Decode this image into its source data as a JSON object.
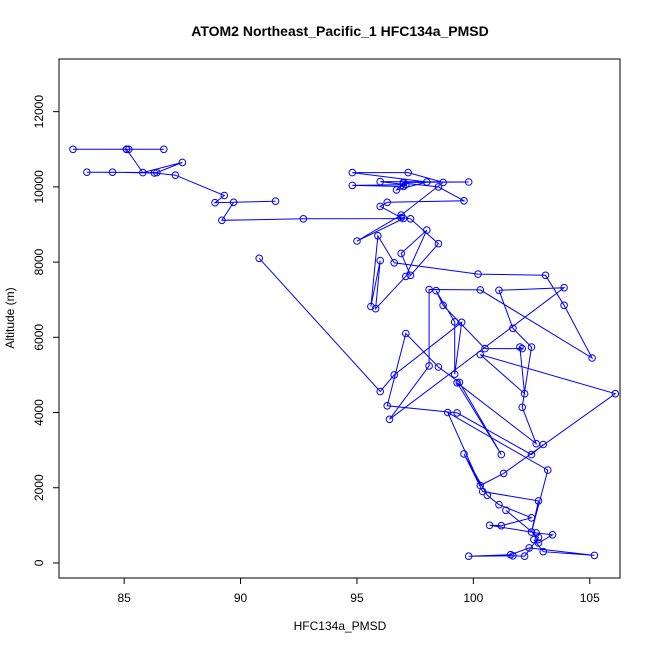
{
  "chart_data": {
    "type": "line",
    "title": "ATOM2 Northeast_Pacific_1 HFC134a_PMSD",
    "xlabel": "HFC134a_PMSD",
    "ylabel": "Altitude (m)",
    "xlim": [
      82.2,
      106.3
    ],
    "ylim": [
      -400,
      13400
    ],
    "xticks": [
      85,
      90,
      95,
      100,
      105
    ],
    "yticks": [
      0,
      2000,
      4000,
      6000,
      8000,
      10000,
      12000
    ],
    "grid": false,
    "markers": "open-circle",
    "series_color": "#0000ff",
    "series": [
      {
        "points": [
          [
            82.8,
            11000
          ],
          [
            85.1,
            11000
          ],
          [
            85.2,
            11000
          ],
          [
            86.7,
            11000
          ],
          [
            85.1,
            11000
          ],
          [
            85.8,
            10380
          ],
          [
            87.5,
            10650
          ],
          [
            86.4,
            10380
          ],
          [
            83.4,
            10390
          ],
          [
            84.5,
            10390
          ],
          [
            86.3,
            10370
          ],
          [
            87.2,
            10310
          ],
          [
            89.3,
            9770
          ],
          [
            88.9,
            9580
          ],
          [
            91.5,
            9620
          ],
          [
            89.7,
            9590
          ],
          [
            89.2,
            9110
          ],
          [
            92.7,
            9150
          ],
          [
            97.0,
            9160
          ],
          [
            95.0,
            8560
          ],
          [
            96.9,
            9250
          ],
          [
            98.7,
            10120
          ],
          [
            97.2,
            10380
          ],
          [
            94.8,
            10380
          ],
          [
            98.0,
            10130
          ],
          [
            96.7,
            9920
          ],
          [
            97.0,
            10120
          ],
          [
            99.8,
            10130
          ],
          [
            96.0,
            10140
          ],
          [
            97.1,
            10060
          ],
          [
            94.8,
            10040
          ],
          [
            97.0,
            10010
          ],
          [
            97.0,
            10100
          ],
          [
            98.5,
            10000
          ],
          [
            99.6,
            9630
          ],
          [
            96.3,
            9590
          ],
          [
            96.0,
            9480
          ],
          [
            96.9,
            9180
          ],
          [
            97.3,
            9150
          ],
          [
            98.5,
            8490
          ],
          [
            97.3,
            7650
          ],
          [
            96.9,
            8230
          ],
          [
            98.0,
            8850
          ],
          [
            97.1,
            7620
          ],
          [
            95.8,
            6760
          ],
          [
            96.0,
            8040
          ],
          [
            95.6,
            6820
          ],
          [
            95.9,
            8700
          ],
          [
            96.6,
            7980
          ],
          [
            100.2,
            7680
          ],
          [
            103.1,
            7650
          ],
          [
            103.9,
            6850
          ],
          [
            105.1,
            5450
          ],
          [
            100.3,
            7260
          ],
          [
            98.1,
            7270
          ],
          [
            98.1,
            5240
          ],
          [
            96.4,
            3820
          ],
          [
            103.9,
            7320
          ],
          [
            101.1,
            7250
          ],
          [
            101.7,
            6240
          ],
          [
            102.5,
            5740
          ],
          [
            102.1,
            4140
          ],
          [
            102.7,
            3170
          ],
          [
            99.3,
            4790
          ],
          [
            101.2,
            2880
          ],
          [
            99.4,
            4800
          ],
          [
            98.5,
            5210
          ],
          [
            97.1,
            6100
          ],
          [
            96.3,
            4180
          ],
          [
            99.3,
            3990
          ],
          [
            102.5,
            2880
          ],
          [
            103.0,
            3150
          ]
        ]
      },
      {
        "points": [
          [
            90.8,
            8100
          ],
          [
            96.0,
            4560
          ],
          [
            96.6,
            5000
          ],
          [
            99.5,
            6400
          ],
          [
            99.2,
            5020
          ],
          [
            99.2,
            6410
          ],
          [
            98.4,
            7240
          ],
          [
            98.7,
            6850
          ],
          [
            100.5,
            5700
          ],
          [
            102.1,
            5700
          ],
          [
            102.0,
            5740
          ],
          [
            102.2,
            4500
          ],
          [
            100.3,
            5540
          ],
          [
            106.1,
            4500
          ],
          [
            101.3,
            2380
          ],
          [
            100.3,
            2060
          ],
          [
            98.9,
            4000
          ],
          [
            103.2,
            2470
          ],
          [
            102.5,
            820
          ],
          [
            102.8,
            1650
          ],
          [
            100.4,
            1900
          ],
          [
            99.6,
            2900
          ],
          [
            100.6,
            1800
          ],
          [
            101.1,
            1550
          ],
          [
            102.5,
            1200
          ],
          [
            101.2,
            990
          ],
          [
            100.7,
            1000
          ],
          [
            102.7,
            800
          ],
          [
            103.4,
            750
          ],
          [
            102.8,
            530
          ],
          [
            102.6,
            620
          ],
          [
            103.0,
            300
          ],
          [
            105.2,
            200
          ],
          [
            102.4,
            400
          ],
          [
            101.6,
            220
          ],
          [
            99.8,
            180
          ],
          [
            101.7,
            190
          ],
          [
            102.2,
            180
          ],
          [
            102.8,
            680
          ],
          [
            101.4,
            1400
          ]
        ]
      }
    ]
  }
}
